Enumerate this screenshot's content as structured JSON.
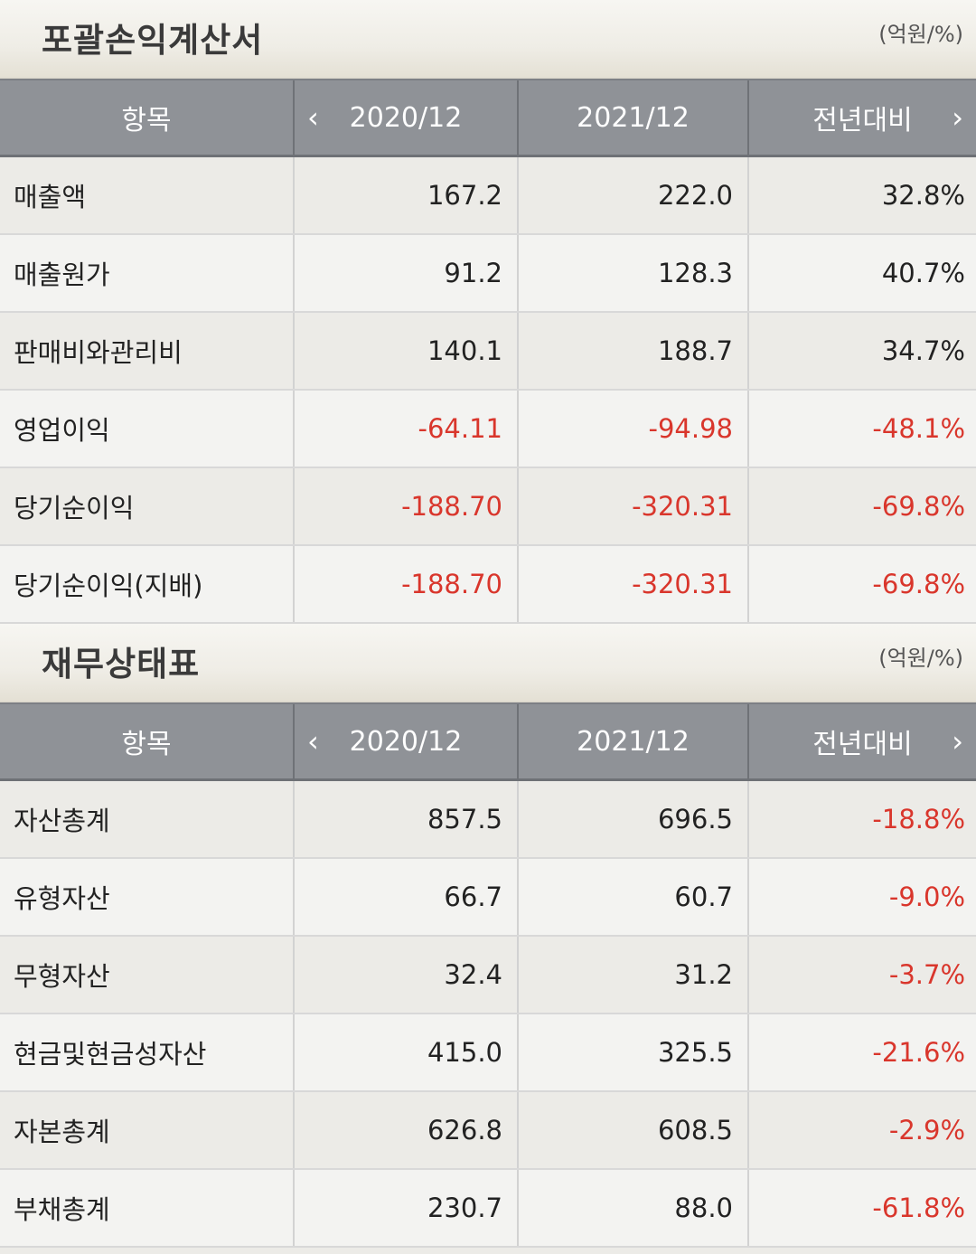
{
  "sections": [
    {
      "title": "포괄손익계산서",
      "unit": "(억원/%)",
      "headers": [
        "항목",
        "2020/12",
        "2021/12",
        "전년대비"
      ],
      "rows": [
        {
          "label": "매출액",
          "v2020": "167.2",
          "v2021": "222.0",
          "yoy": "32.8%",
          "neg": [
            false,
            false,
            false
          ]
        },
        {
          "label": "매출원가",
          "v2020": "91.2",
          "v2021": "128.3",
          "yoy": "40.7%",
          "neg": [
            false,
            false,
            false
          ]
        },
        {
          "label": "판매비와관리비",
          "v2020": "140.1",
          "v2021": "188.7",
          "yoy": "34.7%",
          "neg": [
            false,
            false,
            false
          ]
        },
        {
          "label": "영업이익",
          "v2020": "-64.11",
          "v2021": "-94.98",
          "yoy": "-48.1%",
          "neg": [
            true,
            true,
            true
          ]
        },
        {
          "label": "당기순이익",
          "v2020": "-188.70",
          "v2021": "-320.31",
          "yoy": "-69.8%",
          "neg": [
            true,
            true,
            true
          ]
        },
        {
          "label": "당기순이익(지배)",
          "v2020": "-188.70",
          "v2021": "-320.31",
          "yoy": "-69.8%",
          "neg": [
            true,
            true,
            true
          ]
        }
      ]
    },
    {
      "title": "재무상태표",
      "unit": "(억원/%)",
      "headers": [
        "항목",
        "2020/12",
        "2021/12",
        "전년대비"
      ],
      "rows": [
        {
          "label": "자산총계",
          "v2020": "857.5",
          "v2021": "696.5",
          "yoy": "-18.8%",
          "neg": [
            false,
            false,
            true
          ]
        },
        {
          "label": "유형자산",
          "v2020": "66.7",
          "v2021": "60.7",
          "yoy": "-9.0%",
          "neg": [
            false,
            false,
            true
          ]
        },
        {
          "label": "무형자산",
          "v2020": "32.4",
          "v2021": "31.2",
          "yoy": "-3.7%",
          "neg": [
            false,
            false,
            true
          ]
        },
        {
          "label": "현금및현금성자산",
          "v2020": "415.0",
          "v2021": "325.5",
          "yoy": "-21.6%",
          "neg": [
            false,
            false,
            true
          ]
        },
        {
          "label": "자본총계",
          "v2020": "626.8",
          "v2021": "608.5",
          "yoy": "-2.9%",
          "neg": [
            false,
            false,
            true
          ]
        },
        {
          "label": "부채총계",
          "v2020": "230.7",
          "v2021": "88.0",
          "yoy": "-61.8%",
          "neg": [
            false,
            false,
            true
          ]
        }
      ]
    }
  ],
  "icons": {
    "prev": "chevron-left-icon",
    "next": "chevron-right-icon"
  },
  "colors": {
    "negative": "#d9362c",
    "header_bg": "#8f9297"
  }
}
